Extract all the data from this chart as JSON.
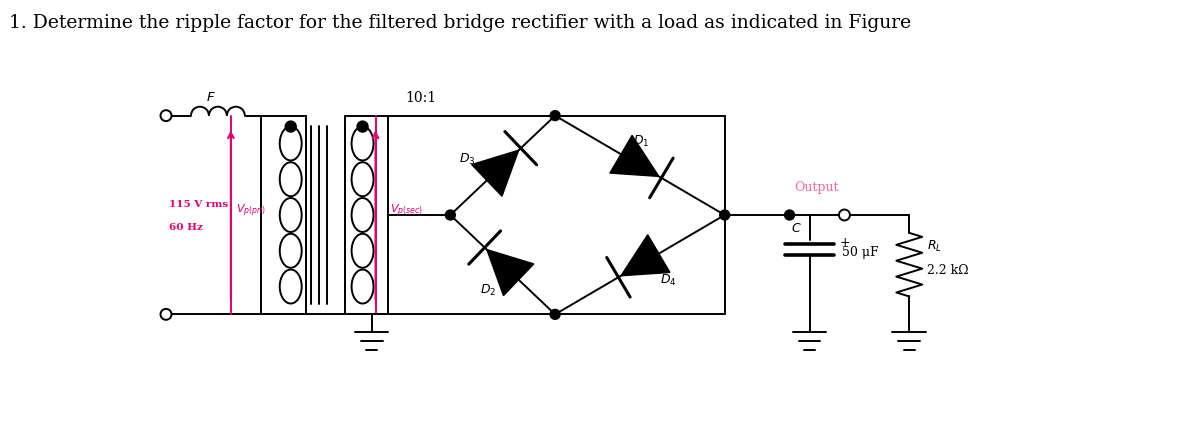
{
  "title": "1. Determine the ripple factor for the filtered bridge rectifier with a load as indicated in Figure",
  "title_fontsize": 13.5,
  "background_color": "#ffffff",
  "text_color": "#000000",
  "pink_color": "#e0006a",
  "output_color": "#ff6699",
  "fig_width": 12.0,
  "fig_height": 4.31,
  "xlim": [
    0,
    12
  ],
  "ylim": [
    0,
    4.31
  ]
}
